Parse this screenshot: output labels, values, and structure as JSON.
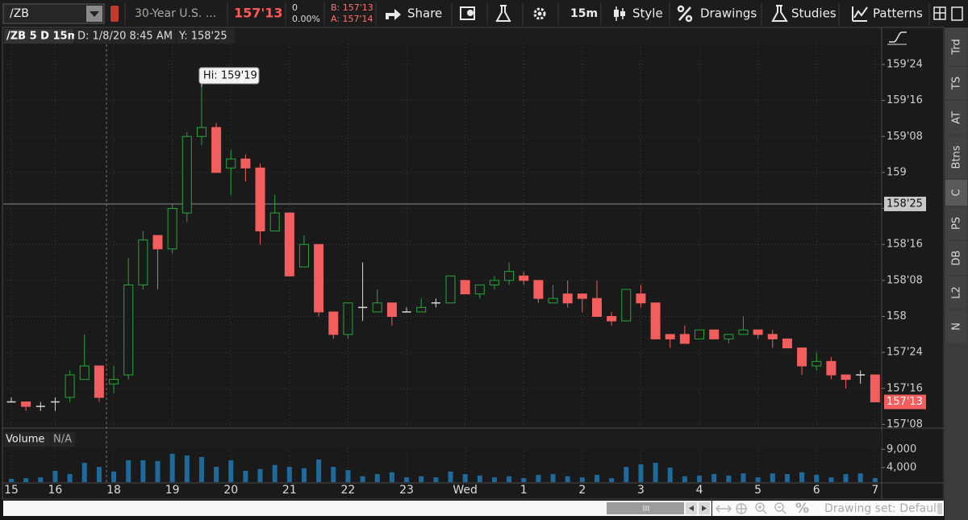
{
  "toolbar": {
    "symbol": "/ZB",
    "description": "30-Year U.S. ...",
    "last": "157'13",
    "change": "0",
    "change_pct": "0.00%",
    "bid": "B: 157'13",
    "ask": "A: 157'14",
    "buttons": [
      "Share",
      "15m",
      "Style",
      "Drawings",
      "Studies",
      "Patterns"
    ]
  },
  "side_tabs": [
    "Trd",
    "TS",
    "AT",
    "Btns",
    "C",
    "PS",
    "DB",
    "L2",
    "N"
  ],
  "chart_data": {
    "type": "candlestick",
    "header": {
      "study": "/ZB 5 D 15m",
      "date": "D: 1/8/20 8:45 AM",
      "y": "Y: 158'25"
    },
    "categories": [
      "15",
      null,
      null,
      "16",
      null,
      null,
      null,
      "18",
      null,
      null,
      null,
      "19",
      null,
      null,
      null,
      "20",
      null,
      null,
      null,
      "21",
      null,
      null,
      null,
      "22",
      null,
      null,
      null,
      "23",
      null,
      null,
      null,
      "Wed",
      null,
      null,
      null,
      "1",
      null,
      null,
      null,
      "2",
      null,
      null,
      null,
      "3",
      null,
      null,
      null,
      "4",
      null,
      null,
      null,
      "5",
      null,
      null,
      null,
      "6",
      null,
      null,
      null,
      "7"
    ],
    "open": [
      157.40625,
      157.40625,
      157.375,
      157.40625,
      157.4375,
      157.5625,
      157.65625,
      157.53125,
      157.59375,
      158.21875,
      158.5625,
      158.46875,
      158.71875,
      159.25,
      159.3125,
      159.03125,
      159.09375,
      159.03125,
      158.59375,
      158.71875,
      158.34375,
      158.5,
      158.03125,
      157.875,
      158.0625,
      158.03125,
      158.09375,
      158.03125,
      158.03125,
      158.09375,
      158.09375,
      158.25,
      158.15625,
      158.21875,
      158.25,
      158.28125,
      158.25,
      158.09375,
      158.15625,
      158.15625,
      158.125,
      158,
      157.96875,
      158.15625,
      158.09375,
      157.875,
      157.875,
      157.84375,
      157.90625,
      157.84375,
      157.875,
      157.90625,
      157.875,
      157.84375,
      157.78125,
      157.65625,
      157.6875,
      157.59375,
      157.59375,
      157.59375
    ],
    "high": [
      157.4375,
      157.40625,
      157.40625,
      157.4375,
      157.625,
      157.875,
      157.65625,
      157.65625,
      158.40625,
      158.59375,
      158.5625,
      158.78125,
      159.28125,
      159.59375,
      159.34375,
      159.15625,
      159.125,
      159.0625,
      158.84375,
      158.71875,
      158.5625,
      158.5,
      158.03125,
      158.09375,
      158.375,
      158.1875,
      158.09375,
      158.0625,
      158.125,
      158.125,
      158.28125,
      158.25,
      158.21875,
      158.28125,
      158.375,
      158.3125,
      158.25,
      158.21875,
      158.25,
      158.15625,
      158.25,
      158.03125,
      158.1875,
      158.21875,
      158.09375,
      157.875,
      157.9375,
      157.90625,
      157.90625,
      157.875,
      158,
      157.90625,
      157.90625,
      157.84375,
      157.78125,
      157.75,
      157.71875,
      157.59375,
      157.625,
      157.59375
    ],
    "low": [
      157.40625,
      157.34375,
      157.34375,
      157.34375,
      157.40625,
      157.5625,
      157.40625,
      157.46875,
      157.5625,
      158.1875,
      158.1875,
      158.4375,
      158.65625,
      159.1875,
      159,
      158.84375,
      158.9375,
      158.5,
      158.59375,
      158.28125,
      158.34375,
      158,
      157.84375,
      157.84375,
      157.96875,
      158.03125,
      157.9375,
      158.03125,
      158.03125,
      158.0625,
      158.09375,
      158.15625,
      158.125,
      158.1875,
      158.21875,
      158.21875,
      158.09375,
      158.09375,
      158.0625,
      158.03125,
      158,
      157.9375,
      157.96875,
      158.0625,
      157.84375,
      157.78125,
      157.8125,
      157.84375,
      157.84375,
      157.8125,
      157.875,
      157.84375,
      157.78125,
      157.78125,
      157.59375,
      157.625,
      157.5625,
      157.5,
      157.53125,
      157.40625
    ],
    "close": [
      157.40625,
      157.375,
      157.375,
      157.40625,
      157.59375,
      157.65625,
      157.4375,
      157.5625,
      158.21875,
      158.53125,
      158.46875,
      158.75,
      159.25,
      159.3125,
      159,
      159.09375,
      159.03125,
      158.59375,
      158.71875,
      158.28125,
      158.5,
      158.03125,
      157.875,
      158.09375,
      158.0625,
      158.09375,
      158,
      158.03125,
      158.0625,
      158.09375,
      158.28125,
      158.15625,
      158.21875,
      158.25,
      158.3125,
      158.25,
      158.125,
      158.125,
      158.09375,
      158.125,
      158,
      157.96875,
      158.1875,
      158.09375,
      157.84375,
      157.84375,
      157.8125,
      157.90625,
      157.84375,
      157.875,
      157.90625,
      157.875,
      157.84375,
      157.78125,
      157.65625,
      157.6875,
      157.59375,
      157.5625,
      157.59375,
      157.40625
    ],
    "up_color": "#22a83a",
    "down_color": "#f25d5d",
    "doji_color": "#d8d8d8",
    "ylim": [
      157.23,
      159.89
    ],
    "yticks": [
      {
        "value": 157.25,
        "label": "157'08"
      },
      {
        "value": 157.5,
        "label": "157'16"
      },
      {
        "value": 157.75,
        "label": "157'24"
      },
      158,
      {
        "value": 158.25,
        "label": "158'08"
      },
      {
        "value": 158.5,
        "label": "158'16"
      },
      {
        "value": 158.75,
        "label": "158'24"
      },
      159,
      {
        "value": 159.25,
        "label": "159'08"
      },
      {
        "value": 159.5,
        "label": "159'16"
      },
      {
        "value": 159.75,
        "label": "159'24"
      }
    ],
    "grid": true,
    "annotation": {
      "value": 159.59375,
      "label": "Hi: 159'19"
    },
    "crosshair": {
      "value": 158.78125,
      "label": "158'25"
    },
    "last_price": {
      "value": 157.40625,
      "label": "157'13"
    },
    "volume": {
      "label": "Volume",
      "value_text": "N/A",
      "color": "#1d6a9c",
      "values": [
        900,
        1100,
        1300,
        3100,
        2200,
        5300,
        4200,
        2900,
        6000,
        6000,
        5800,
        7800,
        7300,
        6900,
        4200,
        6000,
        3100,
        3600,
        4700,
        4200,
        3800,
        6200,
        4200,
        3300,
        1600,
        2200,
        2700,
        1300,
        1600,
        1300,
        2900,
        2200,
        1800,
        1300,
        1600,
        1100,
        2000,
        2200,
        1600,
        1300,
        2000,
        1100,
        4200,
        4900,
        5300,
        4000,
        1600,
        1800,
        2200,
        1800,
        2400,
        1300,
        2400,
        2200,
        2700,
        2000,
        1300,
        2200,
        2400,
        1100
      ],
      "ylim": [
        0,
        9300
      ],
      "yticks": [
        {
          "value": 4000,
          "label": "4,000"
        },
        {
          "value": 9000,
          "label": "9,000"
        }
      ]
    }
  },
  "footer": {
    "drawing_set": "Drawing set: Default"
  }
}
